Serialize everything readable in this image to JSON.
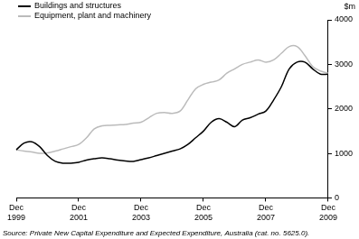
{
  "chart_data": {
    "type": "line",
    "y_label": "$m",
    "source": "Source: Private New Capital Expenditure and Expected Expenditure, Australia (cat. no. 5625.0).",
    "categories": [
      "Dec 1999",
      null,
      null,
      null,
      null,
      null,
      null,
      null,
      "Dec 2001",
      null,
      null,
      null,
      null,
      null,
      null,
      null,
      "Dec 2003",
      null,
      null,
      null,
      null,
      null,
      null,
      null,
      "Dec 2005",
      null,
      null,
      null,
      null,
      null,
      null,
      null,
      "Dec 2007",
      null,
      null,
      null,
      null,
      null,
      null,
      null,
      "Dec 2009"
    ],
    "series": [
      {
        "name": "Buildings and structures",
        "color": "#000000",
        "values": [
          1080,
          1230,
          1260,
          1150,
          950,
          820,
          780,
          780,
          800,
          850,
          880,
          900,
          880,
          850,
          830,
          820,
          860,
          900,
          950,
          1000,
          1050,
          1100,
          1200,
          1350,
          1500,
          1700,
          1780,
          1700,
          1600,
          1750,
          1800,
          1880,
          1950,
          2200,
          2500,
          2900,
          3050,
          3050,
          2900,
          2780,
          2780
        ]
      },
      {
        "name": "Equipment, plant and machinery",
        "color": "#bbbbbb",
        "values": [
          1080,
          1050,
          1030,
          1000,
          1010,
          1050,
          1100,
          1150,
          1200,
          1350,
          1550,
          1620,
          1630,
          1640,
          1650,
          1680,
          1700,
          1800,
          1900,
          1920,
          1900,
          1950,
          2200,
          2450,
          2550,
          2600,
          2650,
          2800,
          2900,
          3000,
          3050,
          3100,
          3050,
          3100,
          3250,
          3400,
          3400,
          3200,
          2950,
          2850,
          2800
        ]
      }
    ],
    "ylim": [
      0,
      4000
    ],
    "yticks": [
      0,
      1000,
      2000,
      3000,
      4000
    ],
    "grid": false,
    "legend": "top-left"
  }
}
